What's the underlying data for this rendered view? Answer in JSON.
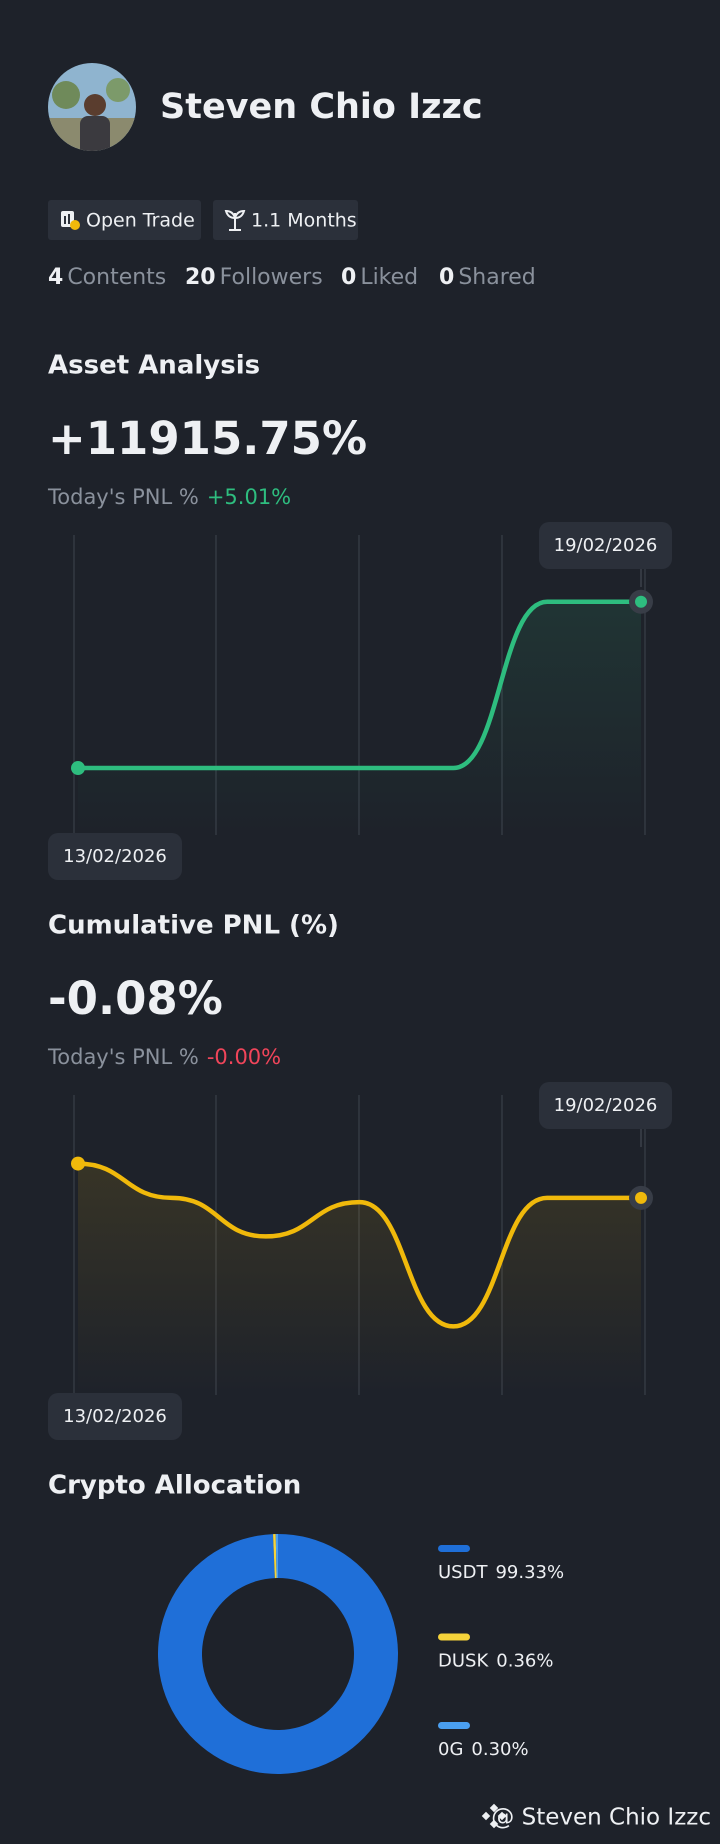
{
  "profile": {
    "name": "Steven Chio Izzc",
    "badges": [
      "Open Trade",
      "1.1 Months"
    ],
    "stats": [
      {
        "count": 4,
        "label": "Contents"
      },
      {
        "count": 20,
        "label": "Followers"
      },
      {
        "count": 0,
        "label": "Liked"
      },
      {
        "count": 0,
        "label": "Shared"
      }
    ]
  },
  "chart_data": [
    {
      "type": "line",
      "title": "Asset Analysis",
      "headline": "+11915.75%",
      "pnl_label": "Today's PNL %",
      "pnl_value": "+5.01%",
      "categories": [
        "13/02/2026",
        null,
        null,
        null,
        null,
        null,
        "19/02/2026"
      ],
      "series": [
        {
          "color": "#2ebd7f",
          "values": [
            0,
            0,
            0,
            0,
            0,
            11915.75,
            11915.75
          ]
        }
      ],
      "ylim": [
        -4800,
        16700
      ]
    },
    {
      "type": "line",
      "title": "Cumulative PNL (%)",
      "headline": "-0.08%",
      "pnl_label": "Today's PNL %",
      "pnl_value": "-0.00%",
      "categories": [
        "13/02/2026",
        null,
        null,
        null,
        null,
        null,
        "19/02/2026"
      ],
      "series": [
        {
          "color": "#f0b90b",
          "values": [
            0,
            -0.08,
            -0.17,
            -0.09,
            -0.38,
            -0.08,
            -0.08
          ]
        }
      ],
      "ylim": [
        -0.54,
        0.16
      ]
    },
    {
      "type": "pie",
      "title": "Crypto Allocation",
      "categories": [
        "USDT",
        "DUSK",
        "0G"
      ],
      "values": [
        99.33,
        0.36,
        0.3
      ],
      "value_labels": [
        "99.33%",
        "0.36%",
        "0.30%"
      ],
      "colors": [
        "#1f6fd8",
        "#f5d33a",
        "#4a9ff0"
      ]
    }
  ],
  "footer": "@ Steven Chio Izzc"
}
